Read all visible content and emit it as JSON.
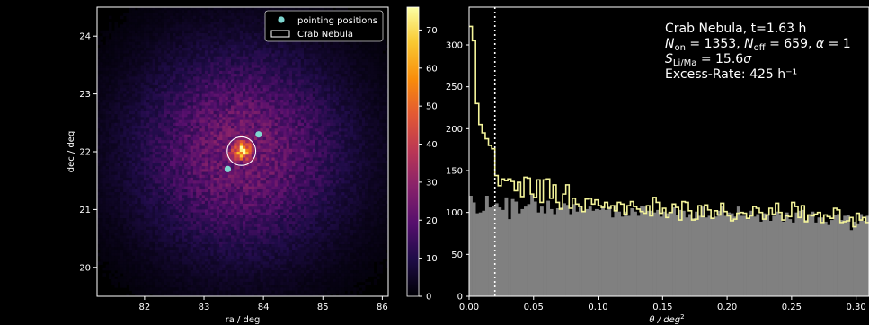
{
  "chart_data": [
    {
      "type": "heatmap",
      "xlabel": "ra / deg",
      "ylabel": "dec / deg",
      "xlim": [
        81.2,
        86.1
      ],
      "ylim": [
        19.5,
        24.5
      ],
      "xticks": [
        82,
        83,
        84,
        85,
        86
      ],
      "yticks": [
        20,
        21,
        22,
        23,
        24
      ],
      "colormap": "inferno",
      "background_color": "#000000",
      "density_center": [
        83.63,
        22.01
      ],
      "density_sigma_deg": 1.25,
      "hotspot": [
        83.64,
        22.02
      ],
      "hotspot_sigma_deg": 0.1,
      "peak_value": 76,
      "colorbar": {
        "min": 0,
        "max": 76,
        "ticks": [
          0,
          10,
          20,
          30,
          40,
          50,
          60,
          70
        ]
      },
      "pointing_positions": {
        "label": "pointing positions",
        "color": "#7fd7d0",
        "ra": [
          83.92,
          83.4
        ],
        "dec": [
          22.3,
          21.7
        ]
      },
      "source_circle": {
        "label": "Crab Nebula",
        "ra": 83.63,
        "dec": 22.01,
        "radius_deg": 0.24,
        "color": "#ffffff"
      },
      "legend": {
        "location": "top-right",
        "entries": [
          "pointing positions",
          "Crab Nebula"
        ]
      }
    },
    {
      "type": "histogram",
      "xlabel_main": "θ / deg",
      "xlabel_sup": "2",
      "xlim": [
        0,
        0.31
      ],
      "ylim": [
        0,
        345
      ],
      "xticks": [
        "0.00",
        "0.05",
        "0.10",
        "0.15",
        "0.20",
        "0.25",
        "0.30"
      ],
      "xtick_values": [
        0,
        0.05,
        0.1,
        0.15,
        0.2,
        0.25,
        0.3
      ],
      "yticks": [
        0,
        50,
        100,
        150,
        200,
        250,
        300
      ],
      "bin_width": 0.0025,
      "cut_line": {
        "x": 0.02,
        "color": "#ffffff",
        "style": "dotted"
      },
      "series": [
        {
          "style": "step",
          "color": "#f5f59a",
          "values": [
            322,
            305,
            230,
            205,
            195,
            188,
            180,
            176,
            144,
            132,
            140,
            138,
            140,
            137,
            126,
            136,
            119,
            142,
            141,
            122,
            118,
            139,
            112,
            139,
            140,
            117,
            133,
            112,
            104,
            122,
            133,
            105,
            117,
            110,
            107,
            101,
            116,
            117,
            110,
            115,
            108,
            106,
            112,
            105,
            108,
            102,
            112,
            110,
            98,
            108,
            113,
            107,
            104,
            101,
            99,
            108,
            96,
            118,
            112,
            99,
            105,
            94,
            100,
            110,
            106,
            91,
            113,
            112,
            102,
            91,
            92,
            108,
            95,
            109,
            103,
            93,
            102,
            97,
            111,
            101,
            96,
            90,
            92,
            99,
            100,
            99,
            93,
            96,
            107,
            105,
            100,
            92,
            97,
            105,
            98,
            111,
            100,
            91,
            96,
            95,
            112,
            107,
            94,
            108,
            89,
            97,
            96,
            98,
            100,
            88,
            97,
            95,
            93,
            105,
            103,
            88,
            89,
            90,
            94,
            83,
            99,
            91,
            94,
            88
          ]
        },
        {
          "style": "filled",
          "color": "#808080",
          "values": [
            120,
            112,
            99,
            100,
            102,
            120,
            106,
            108,
            111,
            106,
            103,
            118,
            92,
            116,
            113,
            99,
            104,
            107,
            110,
            122,
            113,
            100,
            107,
            99,
            114,
            104,
            98,
            105,
            106,
            111,
            109,
            98,
            110,
            101,
            106,
            102,
            104,
            107,
            102,
            104,
            103,
            107,
            103,
            107,
            94,
            109,
            101,
            95,
            101,
            96,
            105,
            101,
            96,
            108,
            107,
            102,
            102,
            100,
            103,
            95,
            101,
            99,
            100,
            106,
            97,
            103,
            102,
            94,
            98,
            93,
            101,
            96,
            107,
            94,
            96,
            93,
            95,
            102,
            108,
            96,
            100,
            99,
            95,
            107,
            96,
            96,
            92,
            102,
            95,
            98,
            89,
            99,
            98,
            90,
            96,
            101,
            98,
            89,
            100,
            92,
            88,
            100,
            102,
            103,
            91,
            97,
            101,
            88,
            94,
            94,
            89,
            85,
            91,
            97,
            98,
            91,
            96,
            97,
            79,
            89,
            87,
            98,
            90,
            96
          ]
        }
      ],
      "annotation": {
        "line1": "Crab Nebula, t=1.63 h",
        "line2": {
          "n": "N",
          "on_sub": "on",
          "on_val": " = 1353, ",
          "off_sub": "off",
          "off_val": " = 659, ",
          "alpha": "α",
          "alpha_val": " = 1"
        },
        "line3": {
          "s": "S",
          "sub": "Li/Ma",
          "val": " = 15.6",
          "sigma": "σ"
        },
        "line4": "Excess-Rate: 425 h⁻¹"
      }
    }
  ]
}
